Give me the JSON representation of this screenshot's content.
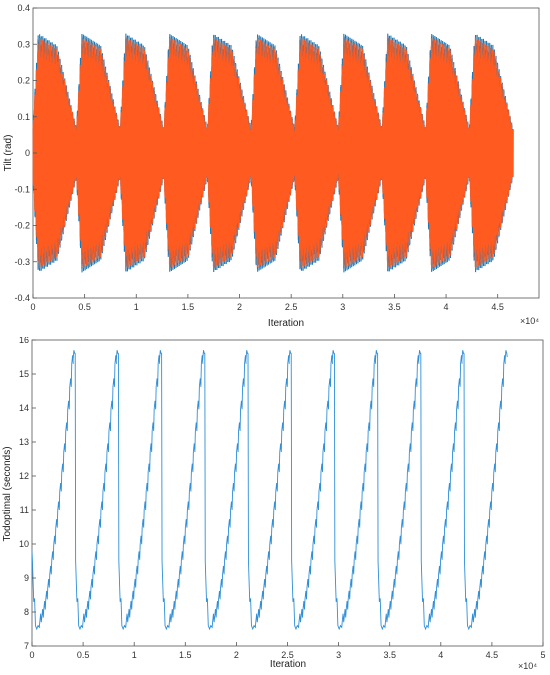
{
  "chart_data": [
    {
      "type": "line",
      "xlabel": "Iteration",
      "ylabel": "Tilt (rad)",
      "x_multiplier": "×10⁴",
      "xlim": [
        0,
        4.9
      ],
      "ylim": [
        -0.4,
        0.4
      ],
      "xticks": [
        "0",
        "0.5",
        "1",
        "1.5",
        "2",
        "2.5",
        "3",
        "3.5",
        "4",
        "4.5"
      ],
      "yticks": [
        "-0.4",
        "-0.3",
        "-0.2",
        "-0.1",
        "0",
        "0.1",
        "0.2",
        "0.3",
        "0.4"
      ],
      "series": [
        {
          "color": "#1f77b4",
          "amplitude": 0.33
        },
        {
          "color": "#ff5a1f",
          "amplitude": 0.32
        }
      ],
      "cycles": 11,
      "x_end": 4.65
    },
    {
      "type": "line",
      "xlabel": "Iteration",
      "ylabel": "Todoptimal (seconds)",
      "x_multiplier": "×10⁴",
      "xlim": [
        0,
        5.0
      ],
      "ylim": [
        7,
        16
      ],
      "xticks": [
        "0",
        "0.5",
        "1",
        "1.5",
        "2",
        "2.5",
        "3",
        "3.5",
        "4",
        "4.5",
        "5"
      ],
      "yticks": [
        "7",
        "8",
        "9",
        "10",
        "11",
        "12",
        "13",
        "14",
        "15",
        "16"
      ],
      "series": [
        {
          "color": "#2f8fd8",
          "min": 7.5,
          "max": 15.7
        }
      ],
      "cycles": 11,
      "x_end": 4.65
    }
  ]
}
